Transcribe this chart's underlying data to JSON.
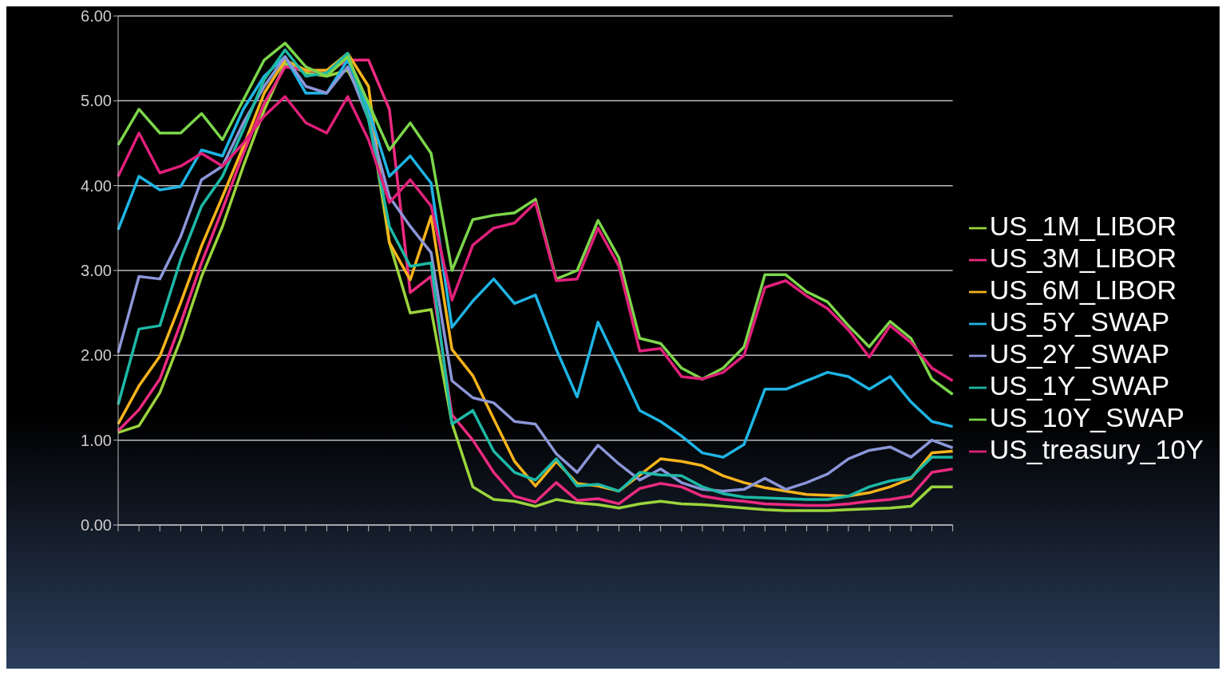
{
  "chart_data": {
    "type": "line",
    "categories": [
      null,
      null,
      null,
      null,
      null,
      null,
      null,
      null,
      null,
      null,
      null,
      null,
      null,
      null,
      null,
      null,
      null,
      null,
      null,
      null,
      null,
      null,
      null,
      null,
      null,
      null,
      null,
      null,
      null,
      null,
      null,
      null,
      null,
      null,
      null,
      null,
      null,
      null,
      null,
      null,
      null
    ],
    "series": [
      {
        "name": "US_1M_LIBOR",
        "color": "#9bd43c",
        "values": [
          1.09,
          1.17,
          1.56,
          2.19,
          2.93,
          3.52,
          4.23,
          4.89,
          5.44,
          5.33,
          5.29,
          5.36,
          4.89,
          3.33,
          2.5,
          2.54,
          1.2,
          0.45,
          0.3,
          0.28,
          0.22,
          0.3,
          0.26,
          0.24,
          0.2,
          0.25,
          0.28,
          0.25,
          0.24,
          0.22,
          0.2,
          0.18,
          0.17,
          0.17,
          0.17,
          0.18,
          0.19,
          0.2,
          0.22,
          0.45,
          0.45
        ]
      },
      {
        "name": "US_3M_LIBOR",
        "color": "#ec2a80",
        "values": [
          1.11,
          1.36,
          1.72,
          2.38,
          3.09,
          3.72,
          4.38,
          4.97,
          5.4,
          5.36,
          5.33,
          5.48,
          5.48,
          4.9,
          2.74,
          2.93,
          1.3,
          1.0,
          0.62,
          0.34,
          0.27,
          0.5,
          0.29,
          0.31,
          0.25,
          0.43,
          0.49,
          0.45,
          0.34,
          0.3,
          0.28,
          0.25,
          0.24,
          0.23,
          0.23,
          0.25,
          0.28,
          0.3,
          0.34,
          0.62,
          0.66
        ]
      },
      {
        "name": "US_6M_LIBOR",
        "color": "#f6b41c",
        "values": [
          1.19,
          1.64,
          1.99,
          2.62,
          3.29,
          3.87,
          4.46,
          5.09,
          5.48,
          5.36,
          5.36,
          5.56,
          5.17,
          3.33,
          2.89,
          3.64,
          2.07,
          1.76,
          1.25,
          0.75,
          0.46,
          0.75,
          0.49,
          0.46,
          0.4,
          0.59,
          0.78,
          0.75,
          0.7,
          0.58,
          0.5,
          0.44,
          0.4,
          0.36,
          0.35,
          0.34,
          0.38,
          0.45,
          0.55,
          0.85,
          0.87
        ]
      },
      {
        "name": "US_5Y_SWAP",
        "color": "#1fb4e4",
        "values": [
          3.48,
          4.11,
          3.95,
          3.99,
          4.42,
          4.35,
          4.9,
          5.29,
          5.52,
          5.09,
          5.09,
          5.48,
          4.9,
          4.11,
          4.35,
          4.03,
          2.33,
          2.64,
          2.9,
          2.61,
          2.71,
          2.07,
          1.51,
          2.39,
          1.88,
          1.35,
          1.22,
          1.05,
          0.85,
          0.8,
          0.95,
          1.6,
          1.6,
          1.7,
          1.8,
          1.75,
          1.6,
          1.75,
          1.45,
          1.22,
          1.16
        ]
      },
      {
        "name": "US_2Y_SWAP",
        "color": "#8c96d8",
        "values": [
          2.03,
          2.93,
          2.9,
          3.4,
          4.07,
          4.23,
          4.74,
          5.17,
          5.52,
          5.17,
          5.09,
          5.4,
          4.78,
          3.87,
          3.52,
          3.21,
          1.7,
          1.5,
          1.44,
          1.22,
          1.19,
          0.84,
          0.62,
          0.94,
          0.72,
          0.53,
          0.66,
          0.5,
          0.42,
          0.4,
          0.42,
          0.55,
          0.42,
          0.5,
          0.6,
          0.78,
          0.88,
          0.92,
          0.8,
          1.0,
          0.91
        ]
      },
      {
        "name": "US_1Y_SWAP",
        "color": "#1db9a6",
        "values": [
          1.42,
          2.31,
          2.35,
          3.13,
          3.76,
          4.11,
          4.66,
          5.25,
          5.6,
          5.29,
          5.33,
          5.56,
          4.78,
          3.52,
          3.05,
          3.09,
          1.19,
          1.35,
          0.87,
          0.62,
          0.53,
          0.78,
          0.46,
          0.48,
          0.4,
          0.62,
          0.59,
          0.58,
          0.45,
          0.37,
          0.33,
          0.32,
          0.31,
          0.3,
          0.3,
          0.34,
          0.45,
          0.52,
          0.56,
          0.8,
          0.8
        ]
      },
      {
        "name": "US_10Y_SWAP",
        "color": "#7cd64a",
        "values": [
          4.48,
          4.9,
          4.62,
          4.62,
          4.85,
          4.54,
          5.01,
          5.48,
          5.68,
          5.4,
          5.29,
          5.52,
          4.97,
          4.42,
          4.74,
          4.38,
          3.0,
          3.6,
          3.65,
          3.68,
          3.84,
          2.9,
          3.0,
          3.59,
          3.15,
          2.2,
          2.14,
          1.85,
          1.72,
          1.85,
          2.1,
          2.95,
          2.95,
          2.75,
          2.63,
          2.35,
          2.1,
          2.4,
          2.2,
          1.72,
          1.54
        ]
      },
      {
        "name": "US_treasury_10Y",
        "color": "#e0207a",
        "values": [
          4.11,
          4.62,
          4.15,
          4.23,
          4.38,
          4.23,
          4.5,
          4.82,
          5.05,
          4.74,
          4.62,
          5.05,
          4.54,
          3.8,
          4.07,
          3.76,
          2.65,
          3.3,
          3.5,
          3.56,
          3.8,
          2.88,
          2.9,
          3.5,
          3.05,
          2.05,
          2.08,
          1.75,
          1.72,
          1.8,
          2.0,
          2.8,
          2.88,
          2.7,
          2.55,
          2.3,
          1.98,
          2.35,
          2.15,
          1.85,
          1.7
        ]
      }
    ],
    "ylim": [
      0,
      6
    ],
    "yticks": [
      {
        "value": 0,
        "label": "0.00"
      },
      {
        "value": 1,
        "label": "1.00"
      },
      {
        "value": 2,
        "label": "2.00"
      },
      {
        "value": 3,
        "label": "3.00"
      },
      {
        "value": 4,
        "label": "4.00"
      },
      {
        "value": 5,
        "label": "5.00"
      },
      {
        "value": 6,
        "label": "6.00"
      }
    ],
    "grid": "y",
    "legend": "right",
    "marker": "none",
    "line_style": "solid"
  }
}
